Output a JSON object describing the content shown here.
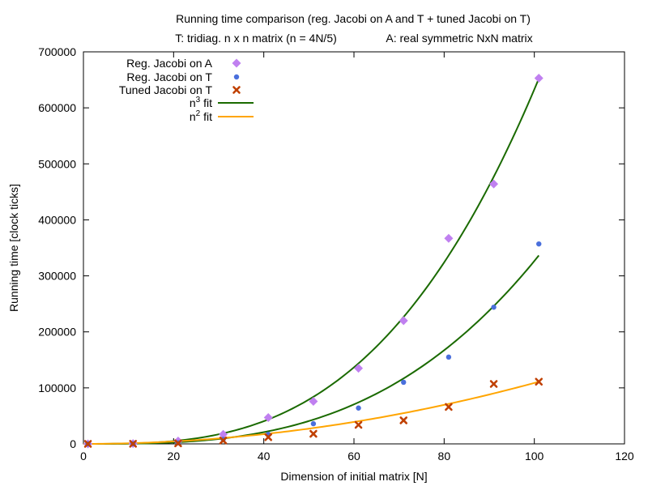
{
  "chart_data": {
    "type": "scatter",
    "title_line1": "Running time comparison (reg. Jacobi on A and T + tuned Jacobi on T)",
    "title_line2_left": "T: tridiag. n x n matrix (n = 4N/5)",
    "title_line2_right": "A: real symmetric NxN matrix",
    "xlabel": "Dimension of initial matrix [N]",
    "ylabel": "Running time [clock ticks]",
    "xlim": [
      0,
      120
    ],
    "ylim": [
      0,
      700000
    ],
    "xticks": [
      0,
      20,
      40,
      60,
      80,
      100,
      120
    ],
    "yticks": [
      0,
      100000,
      200000,
      300000,
      400000,
      500000,
      600000,
      700000
    ],
    "grid": false,
    "legend_position": "top-left",
    "series": [
      {
        "name": "Reg. Jacobi on A",
        "marker": "diamond",
        "color": "#c080f0",
        "x": [
          1,
          11,
          21,
          31,
          41,
          51,
          61,
          71,
          81,
          91,
          101
        ],
        "y": [
          0,
          500,
          5000,
          17000,
          47000,
          76000,
          135000,
          220000,
          367000,
          464000,
          653000
        ]
      },
      {
        "name": "Reg. Jacobi on T",
        "marker": "dot",
        "color": "#4a6fdc",
        "x": [
          1,
          11,
          21,
          31,
          41,
          51,
          61,
          71,
          81,
          91,
          101
        ],
        "y": [
          0,
          300,
          2000,
          8000,
          17000,
          36000,
          64000,
          110000,
          155000,
          244000,
          357000
        ]
      },
      {
        "name": "Tuned Jacobi on T",
        "marker": "x",
        "color": "#c04000",
        "x": [
          1,
          11,
          21,
          31,
          41,
          51,
          61,
          71,
          81,
          91,
          101
        ],
        "y": [
          0,
          200,
          1000,
          6000,
          12000,
          18000,
          34000,
          42000,
          66000,
          107000,
          111000
        ]
      }
    ],
    "fits": [
      {
        "name_base": "n",
        "name_sup": "3",
        "name_rest": " fit",
        "color": "#1a6a00",
        "curves": [
          {
            "coef": 0.633,
            "power": 3,
            "xmax": 101
          },
          {
            "coef": 0.3265,
            "power": 3,
            "xmax": 101
          }
        ]
      },
      {
        "name_base": "n",
        "name_sup": "2",
        "name_rest": " fit",
        "color": "#ffa500",
        "curves": [
          {
            "coef": 10.88,
            "power": 2,
            "xmax": 101
          }
        ]
      }
    ]
  }
}
